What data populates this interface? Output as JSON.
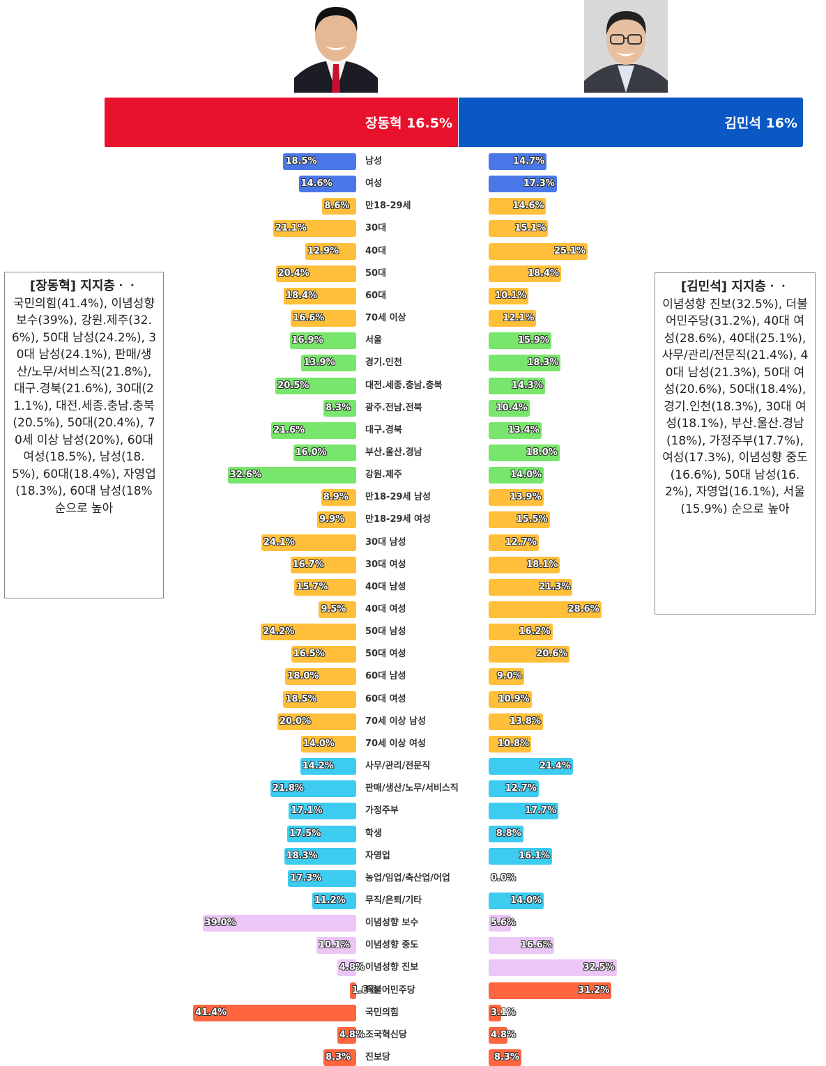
{
  "colors": {
    "header_left": "#e8122d",
    "header_right": "#0a58c4",
    "gender": "#4a77e8",
    "age": "#ffbf3a",
    "region": "#78e66c",
    "occupation": "#3dcbf0",
    "ideology": "#ecc6f7",
    "party": "#ff6640"
  },
  "photos": {
    "left": {
      "icon": "portrait-man-red-tie-icon"
    },
    "right": {
      "icon": "portrait-man-glasses-icon"
    }
  },
  "header": {
    "left": "장동혁 16.5%",
    "right": "김민석 16%"
  },
  "left_box": {
    "title": "[장동혁] 지지층ㆍㆍ",
    "body": "국민의힘(41.4%), 이념성향 보수(39%), 강원.제주(32.6%), 50대 남성(24.2%), 30대 남성(24.1%), 판매/생산/노무/서비스직(21.8%), 대구.경북(21.6%), 30대(21.1%), 대전.세종.충남.충북(20.5%), 50대(20.4%), 70세 이상 남성(20%), 60대 여성(18.5%), 남성(18.5%), 60대(18.4%), 자영업(18.3%), 60대 남성(18% 순으로 높아"
  },
  "right_box": {
    "title": "[김민석] 지지층ㆍㆍ",
    "body": "이념성향 진보(32.5%), 더불어민주당(31.2%), 40대 여성(28.6%), 40대(25.1%), 사무/관리/전문직(21.4%), 40대 남성(21.3%), 50대 여성(20.6%), 50대(18.4%), 경기.인천(18.3%), 30대 여성(18.1%), 부산.울산.경남(18%), 가정주부(17.7%), 여성(17.3%), 이념성향 중도(16.6%), 50대 남성(16.2%), 자영업(16.1%), 서울(15.9%) 순으로 높아"
  },
  "chart_data": {
    "type": "bar",
    "orientation": "horizontal-diverging",
    "series": [
      {
        "name": "장동혁 16.5%",
        "side": "left"
      },
      {
        "name": "김민석 16%",
        "side": "right"
      }
    ],
    "rows": [
      {
        "label": "남성",
        "group": "gender",
        "left": 18.5,
        "right": 14.7
      },
      {
        "label": "여성",
        "group": "gender",
        "left": 14.6,
        "right": 17.3
      },
      {
        "label": "만18-29세",
        "group": "age",
        "left": 8.6,
        "right": 14.6
      },
      {
        "label": "30대",
        "group": "age",
        "left": 21.1,
        "right": 15.1
      },
      {
        "label": "40대",
        "group": "age",
        "left": 12.9,
        "right": 25.1
      },
      {
        "label": "50대",
        "group": "age",
        "left": 20.4,
        "right": 18.4
      },
      {
        "label": "60대",
        "group": "age",
        "left": 18.4,
        "right": 10.1
      },
      {
        "label": "70세 이상",
        "group": "age",
        "left": 16.6,
        "right": 12.1
      },
      {
        "label": "서울",
        "group": "region",
        "left": 16.9,
        "right": 15.9
      },
      {
        "label": "경기.인천",
        "group": "region",
        "left": 13.9,
        "right": 18.3
      },
      {
        "label": "대전.세종.충남.충북",
        "group": "region",
        "left": 20.5,
        "right": 14.3
      },
      {
        "label": "광주.전남.전북",
        "group": "region",
        "left": 8.3,
        "right": 10.4
      },
      {
        "label": "대구.경북",
        "group": "region",
        "left": 21.6,
        "right": 13.4
      },
      {
        "label": "부산.울산.경남",
        "group": "region",
        "left": 16.0,
        "right": 18.0
      },
      {
        "label": "강원.제주",
        "group": "region",
        "left": 32.6,
        "right": 14.0
      },
      {
        "label": "만18-29세 남성",
        "group": "age",
        "left": 8.9,
        "right": 13.9
      },
      {
        "label": "만18-29세 여성",
        "group": "age",
        "left": 9.9,
        "right": 15.5
      },
      {
        "label": "30대 남성",
        "group": "age",
        "left": 24.1,
        "right": 12.7
      },
      {
        "label": "30대 여성",
        "group": "age",
        "left": 16.7,
        "right": 18.1
      },
      {
        "label": "40대 남성",
        "group": "age",
        "left": 15.7,
        "right": 21.3
      },
      {
        "label": "40대 여성",
        "group": "age",
        "left": 9.5,
        "right": 28.6
      },
      {
        "label": "50대 남성",
        "group": "age",
        "left": 24.2,
        "right": 16.2
      },
      {
        "label": "50대 여성",
        "group": "age",
        "left": 16.5,
        "right": 20.6
      },
      {
        "label": "60대 남성",
        "group": "age",
        "left": 18.0,
        "right": 9.0
      },
      {
        "label": "60대 여성",
        "group": "age",
        "left": 18.5,
        "right": 10.9
      },
      {
        "label": "70세 이상 남성",
        "group": "age",
        "left": 20.0,
        "right": 13.8
      },
      {
        "label": "70세 이상 여성",
        "group": "age",
        "left": 14.0,
        "right": 10.8
      },
      {
        "label": "사무/관리/전문직",
        "group": "occupation",
        "left": 14.2,
        "right": 21.4
      },
      {
        "label": "판매/생산/노무/서비스직",
        "group": "occupation",
        "left": 21.8,
        "right": 12.7
      },
      {
        "label": "가정주부",
        "group": "occupation",
        "left": 17.1,
        "right": 17.7
      },
      {
        "label": "학생",
        "group": "occupation",
        "left": 17.5,
        "right": 8.8
      },
      {
        "label": "자영업",
        "group": "occupation",
        "left": 18.3,
        "right": 16.1
      },
      {
        "label": "농업/임업/축산업/어업",
        "group": "occupation",
        "left": 17.3,
        "right": 0.0
      },
      {
        "label": "무직/은퇴/기타",
        "group": "occupation",
        "left": 11.2,
        "right": 14.0
      },
      {
        "label": "이념성향 보수",
        "group": "ideology",
        "left": 39.0,
        "right": 5.6
      },
      {
        "label": "이념성향 중도",
        "group": "ideology",
        "left": 10.1,
        "right": 16.6
      },
      {
        "label": "이념성향 진보",
        "group": "ideology",
        "left": 4.8,
        "right": 32.5
      },
      {
        "label": "더불어민주당",
        "group": "party",
        "left": 1.6,
        "right": 31.2
      },
      {
        "label": "국민의힘",
        "group": "party",
        "left": 41.4,
        "right": 3.1
      },
      {
        "label": "조국혁신당",
        "group": "party",
        "left": 4.8,
        "right": 4.8
      },
      {
        "label": "진보당",
        "group": "party",
        "left": 8.3,
        "right": 8.3
      }
    ],
    "value_format": "0.0%",
    "grid": false,
    "legend": "none"
  }
}
